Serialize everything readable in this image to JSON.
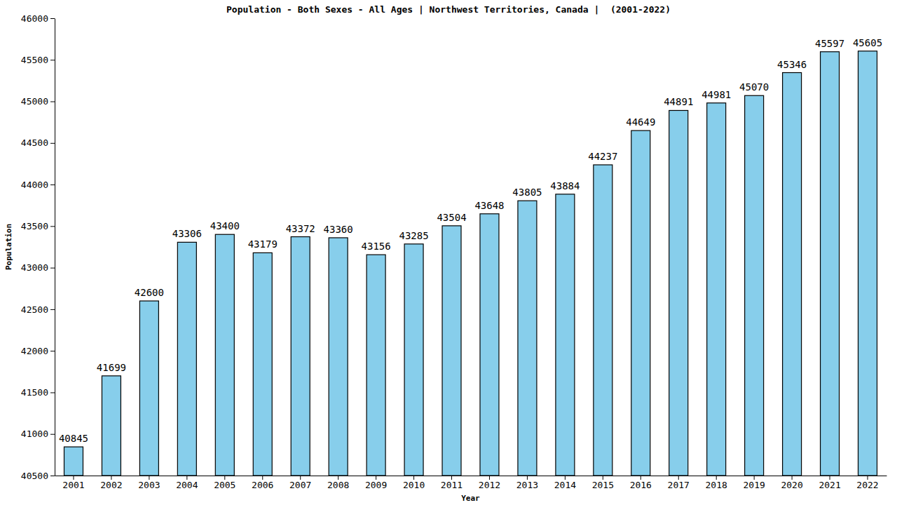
{
  "chart_data": {
    "type": "bar",
    "title": "Population - Both Sexes - All Ages | Northwest Territories, Canada |  (2001-2022)",
    "x_label": "Year",
    "y_label": "Population",
    "categories": [
      "2001",
      "2002",
      "2003",
      "2004",
      "2005",
      "2006",
      "2007",
      "2008",
      "2009",
      "2010",
      "2011",
      "2012",
      "2013",
      "2014",
      "2015",
      "2016",
      "2017",
      "2018",
      "2019",
      "2020",
      "2021",
      "2022"
    ],
    "values": [
      40845,
      41699,
      42600,
      43306,
      43400,
      43179,
      43372,
      43360,
      43156,
      43285,
      43504,
      43648,
      43805,
      43884,
      44237,
      44649,
      44891,
      44981,
      45070,
      45346,
      45597,
      45605
    ],
    "color": "#87ceeb",
    "ylim": [
      40500,
      46000
    ],
    "yticks": [
      40500,
      41000,
      41500,
      42000,
      42500,
      43000,
      43500,
      44000,
      44500,
      45000,
      45500,
      46000
    ],
    "grid": false,
    "data_labels": true
  }
}
